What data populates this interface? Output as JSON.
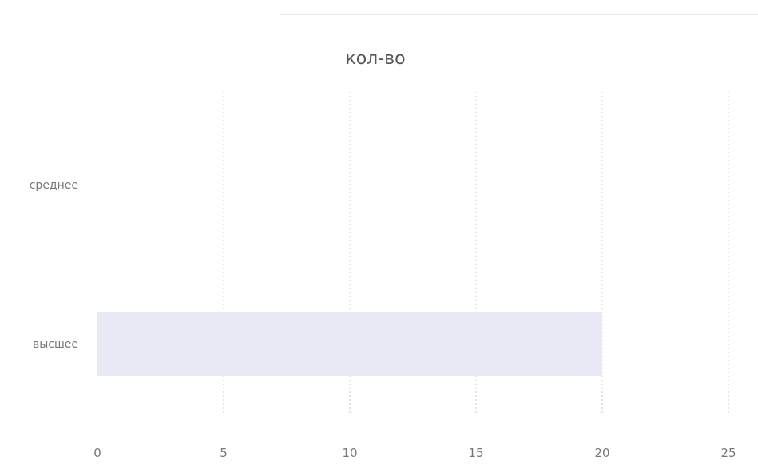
{
  "chart_data": {
    "type": "bar",
    "orientation": "horizontal",
    "title": "кол-во",
    "categories": [
      "среднее",
      "высшее"
    ],
    "values": [
      0,
      20
    ],
    "xlim": [
      0,
      25
    ],
    "x_ticks": [
      "0",
      "5",
      "10",
      "15",
      "20",
      "25"
    ],
    "grid": true,
    "legend": "none",
    "bar_color": "#e9e9f6"
  }
}
